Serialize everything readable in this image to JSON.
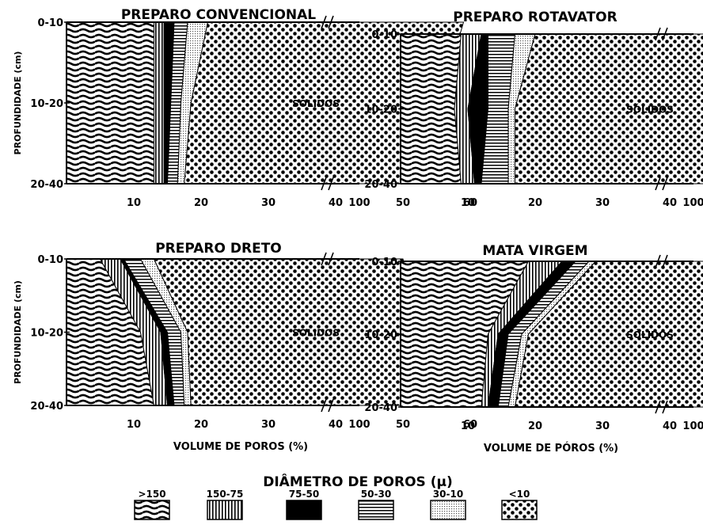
{
  "chart_data": [
    {
      "type": "area",
      "title": "PREPARO  CONVENCIONAL",
      "ylabel": "PROFUNDIDADE (cm)",
      "xlabel": "",
      "depths": [
        "0-10",
        "10-20",
        "20-40"
      ],
      "x_ticks": [
        "10",
        "20",
        "30",
        "40",
        "50",
        "60",
        "100"
      ],
      "series": [
        {
          "class": ">150",
          "values": [
            13,
            13,
            13
          ]
        },
        {
          "class": "150-75",
          "values": [
            1.5,
            1.5,
            1.5
          ]
        },
        {
          "class": "75-50",
          "values": [
            1.5,
            1,
            0.5
          ]
        },
        {
          "class": "50-30",
          "values": [
            2,
            1.5,
            1.5
          ]
        },
        {
          "class": "30-10",
          "values": [
            3,
            1.5,
            1
          ]
        },
        {
          "class": "<10",
          "values": [
            38,
            37,
            37
          ]
        }
      ],
      "solid_label": "SÓLIDOS",
      "solid_label_depth": "10-20"
    },
    {
      "type": "area",
      "title": "PREPARO ROTAVATOR",
      "ylabel": "",
      "xlabel": "",
      "depths": [
        "0-10",
        "10-20",
        "20-40"
      ],
      "x_ticks": [
        "10",
        "20",
        "30",
        "40",
        "50",
        "60",
        "100"
      ],
      "series": [
        {
          "class": ">150",
          "values": [
            9,
            8,
            9
          ]
        },
        {
          "class": "150-75",
          "values": [
            3,
            2,
            2
          ]
        },
        {
          "class": "75-50",
          "values": [
            1,
            3,
            1
          ]
        },
        {
          "class": "50-30",
          "values": [
            4,
            3,
            4
          ]
        },
        {
          "class": "30-10",
          "values": [
            3,
            1,
            1
          ]
        },
        {
          "class": "<10",
          "values": [
            41,
            35,
            37.5
          ]
        }
      ],
      "solid_label": "SÓLIDOS",
      "solid_label_depth": "10-20"
    },
    {
      "type": "area",
      "title": "PREPARO  DRETO",
      "ylabel": "PROFUNDIDADE (cm)",
      "xlabel": "VOLUME  DE  POROS (%)",
      "depths": [
        "0-10",
        "10-20",
        "20-40"
      ],
      "x_ticks": [
        "10",
        "20",
        "30",
        "40",
        "50",
        "60",
        "100"
      ],
      "series": [
        {
          "class": ">150",
          "values": [
            5,
            11,
            13
          ]
        },
        {
          "class": "150-75",
          "values": [
            3,
            3,
            2
          ]
        },
        {
          "class": "75-50",
          "values": [
            0.5,
            1,
            1
          ]
        },
        {
          "class": "50-30",
          "values": [
            2.5,
            2,
            1.5
          ]
        },
        {
          "class": "30-10",
          "values": [
            2,
            1,
            1
          ]
        },
        {
          "class": "<10",
          "values": [
            37,
            35,
            37
          ]
        }
      ],
      "solid_label": "SÓLIDOS",
      "solid_label_depth": "10-20"
    },
    {
      "type": "area",
      "title": "MATA   VIRGEM",
      "ylabel": "",
      "xlabel": "VOLUME  DE  PÓROS (%)",
      "depths": [
        "0-10",
        "10-20",
        "20-40"
      ],
      "x_ticks": [
        "10",
        "20",
        "30",
        "40",
        "50",
        "60",
        "100"
      ],
      "series": [
        {
          "class": ">150",
          "values": [
            19,
            13,
            12
          ]
        },
        {
          "class": "150-75",
          "values": [
            5,
            1.5,
            1
          ]
        },
        {
          "class": "75-50",
          "values": [
            2,
            1.5,
            1.5
          ]
        },
        {
          "class": "50-30",
          "values": [
            2,
            2,
            1.5
          ]
        },
        {
          "class": "30-10",
          "values": [
            1,
            1,
            1
          ]
        },
        {
          "class": "<10",
          "values": [
            36,
            43,
            38
          ]
        }
      ],
      "solid_label": "SÓLIDOS",
      "solid_label_depth": "10-20"
    }
  ],
  "legend": {
    "title": "DIÂMETRO  DE  POROS (μ)",
    "items": [
      {
        "label": ">150",
        "pattern": "waves"
      },
      {
        "label": "150-75",
        "pattern": "vlines"
      },
      {
        "label": "75-50",
        "pattern": "solid"
      },
      {
        "label": "50-30",
        "pattern": "hlines"
      },
      {
        "label": "30-10",
        "pattern": "stipple"
      },
      {
        "label": "<10",
        "pattern": "dots"
      }
    ]
  }
}
